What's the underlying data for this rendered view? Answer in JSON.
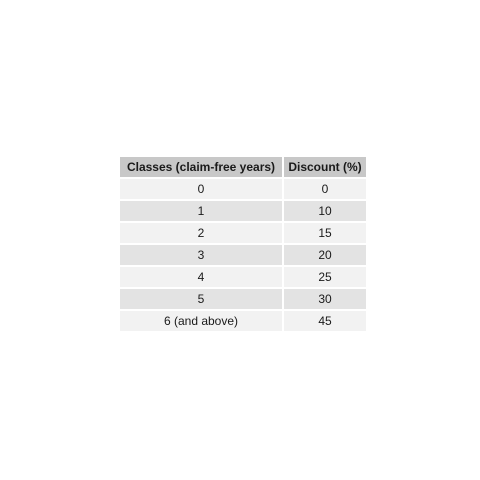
{
  "table": {
    "headers": [
      "Classes (claim-free years)",
      "Discount (%)"
    ],
    "rows": [
      [
        "0",
        "0"
      ],
      [
        "1",
        "10"
      ],
      [
        "2",
        "15"
      ],
      [
        "3",
        "20"
      ],
      [
        "4",
        "25"
      ],
      [
        "5",
        "30"
      ],
      [
        "6 (and above)",
        "45"
      ]
    ],
    "colors": {
      "header_bg": "#c8c8c8",
      "row_light": "#f2f2f2",
      "row_dark": "#e3e3e3"
    }
  }
}
